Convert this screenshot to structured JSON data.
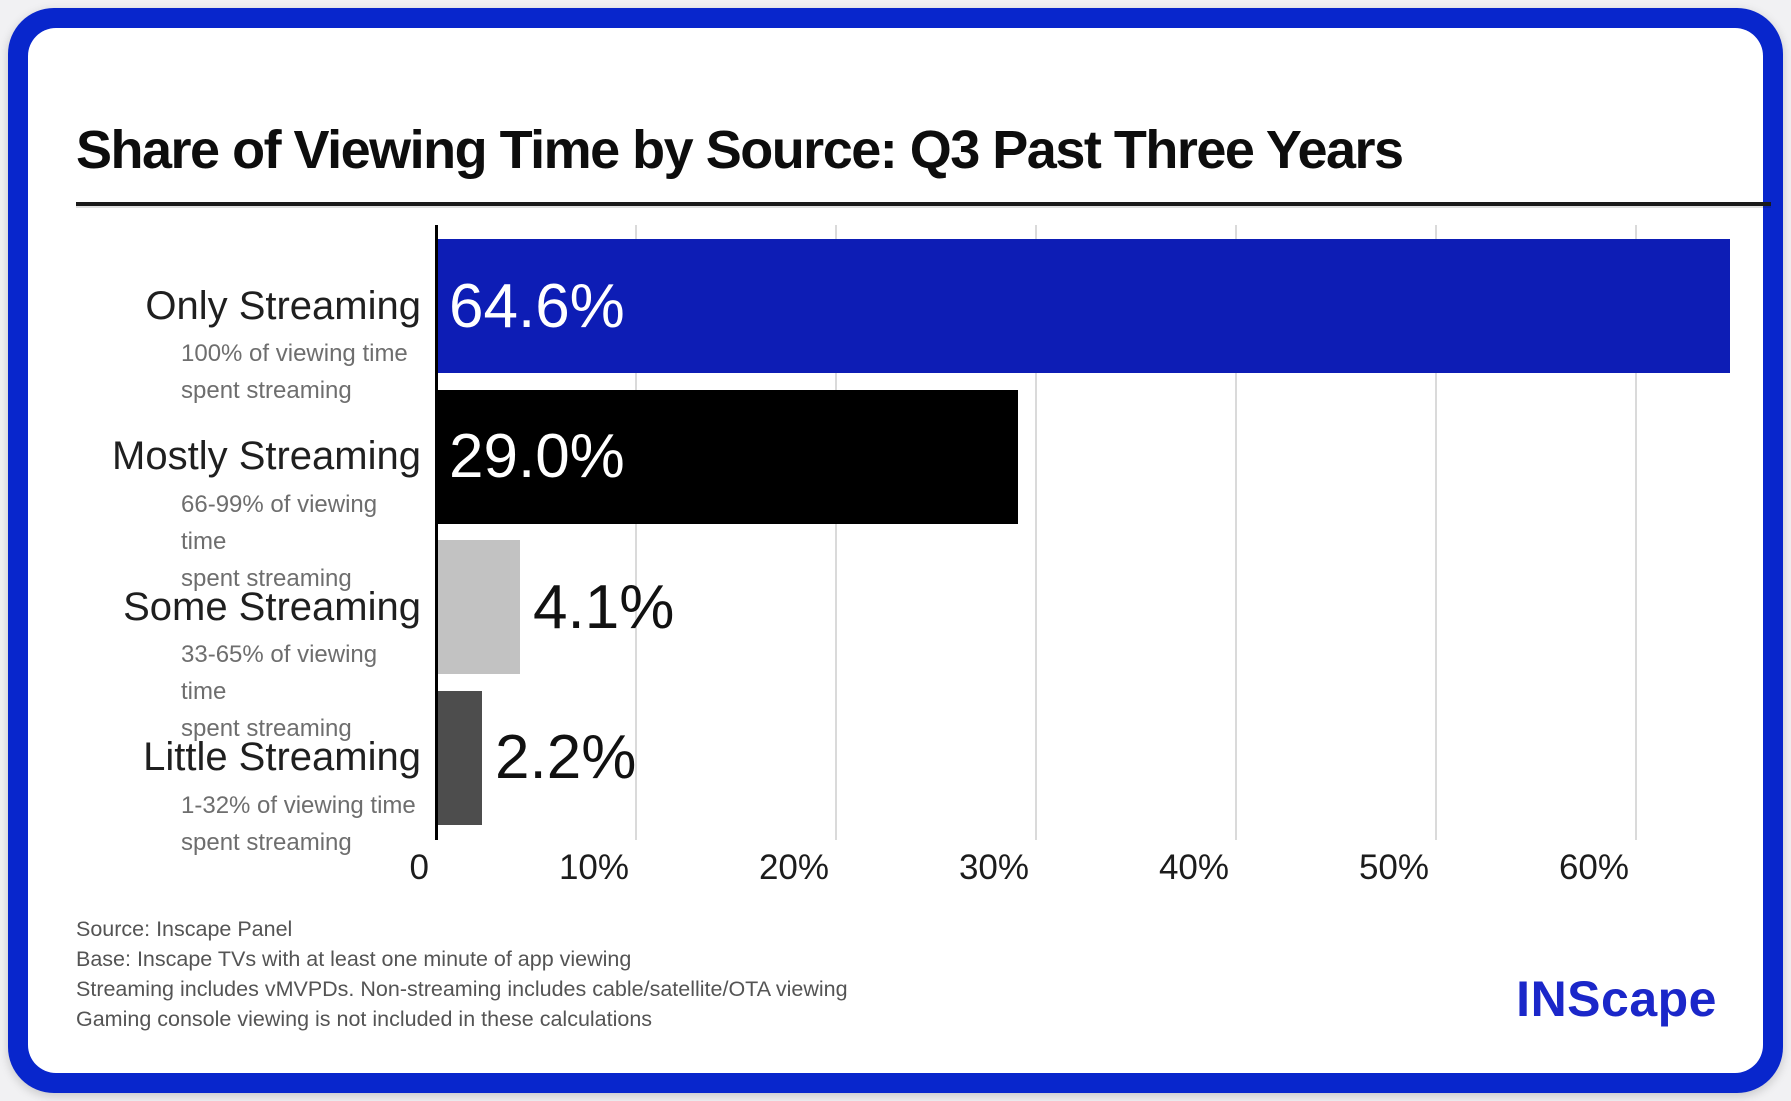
{
  "title": "Share of Viewing Time by Source: Q3 Past Three Years",
  "chart_data": {
    "type": "bar",
    "orientation": "horizontal",
    "title": "Share of Viewing Time by Source: Q3 Past Three Years",
    "categories": [
      "Only Streaming",
      "Mostly Streaming",
      "Some Streaming",
      "Little Streaming"
    ],
    "category_subtitles": [
      "100% of viewing time\nspent streaming",
      "66-99% of viewing time\nspent streaming",
      "33-65% of viewing time\nspent streaming",
      "1-32% of viewing time\nspent streaming"
    ],
    "values": [
      64.6,
      29.0,
      4.1,
      2.2
    ],
    "value_labels": [
      "64.6%",
      "29.0%",
      "4.1%",
      "2.2%"
    ],
    "bar_colors": [
      "#0d1db5",
      "#000000",
      "#c2c2c2",
      "#4d4d4d"
    ],
    "value_label_colors": [
      "#ffffff",
      "#ffffff",
      "#111111",
      "#111111"
    ],
    "x_ticks": [
      0,
      10,
      20,
      30,
      40,
      50,
      60
    ],
    "x_tick_labels": [
      "0",
      "10%",
      "20%",
      "30%",
      "40%",
      "50%",
      "60%"
    ],
    "xlim": [
      0,
      66.9
    ],
    "grid": "vertical",
    "legend": "none"
  },
  "footnotes": [
    "Source: Inscape Panel",
    "Base: Inscape TVs with at least one minute of app viewing",
    "Streaming includes vMVPDs. Non-streaming includes cable/satellite/OTA viewing",
    "Gaming console viewing is not included in these calculations"
  ],
  "logo_text": "INScape",
  "colors": {
    "frame_blue": "#0826cc",
    "bar_blue": "#0d1db5",
    "bar_black": "#000000",
    "bar_light_gray": "#c2c2c2",
    "bar_dark_gray": "#4d4d4d",
    "gridline": "#dadada",
    "logo_blue": "#1b27c9",
    "card_bg": "#ffffff",
    "page_bg": "#f1f1f3"
  }
}
